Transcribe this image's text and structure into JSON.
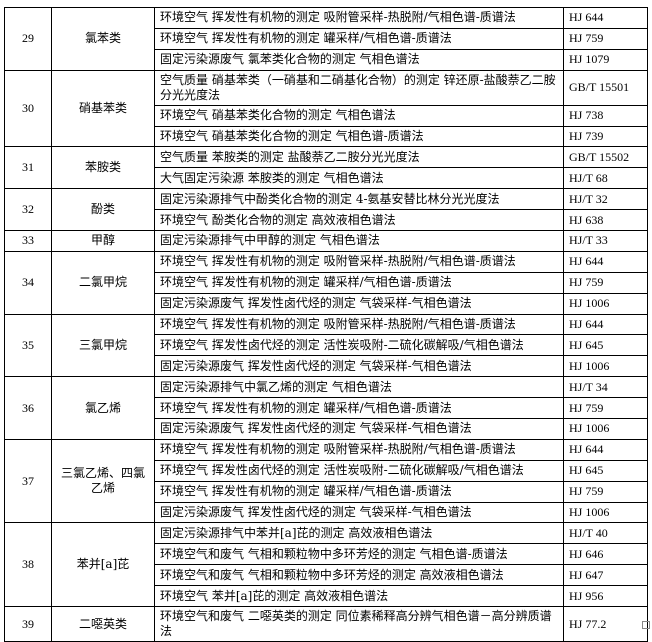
{
  "groups": [
    {
      "no": "29",
      "substance": "氯苯类",
      "methods": [
        {
          "name": "环境空气 挥发性有机物的测定  吸附管采样-热脱附/气相色谱-质谱法",
          "code": "HJ 644"
        },
        {
          "name": "环境空气 挥发性有机物的测定  罐采样/气相色谱-质谱法",
          "code": "HJ 759"
        },
        {
          "name": "固定污染源废气 氯苯类化合物的测定  气相色谱法",
          "code": "HJ 1079"
        }
      ]
    },
    {
      "no": "30",
      "substance": "硝基苯类",
      "methods": [
        {
          "name": "空气质量  硝基苯类（一硝基和二硝基化合物）的测定  锌还原-盐酸萘乙二胺分光光度法",
          "code": "GB/T 15501"
        },
        {
          "name": "环境空气 硝基苯类化合物的测定  气相色谱法",
          "code": "HJ 738"
        },
        {
          "name": "环境空气 硝基苯类化合物的测定  气相色谱-质谱法",
          "code": "HJ 739"
        }
      ]
    },
    {
      "no": "31",
      "substance": "苯胺类",
      "methods": [
        {
          "name": "空气质量 苯胺类的测定  盐酸萘乙二胺分光光度法",
          "code": "GB/T 15502"
        },
        {
          "name": "大气固定污染源  苯胺类的测定  气相色谱法",
          "code": "HJ/T 68"
        }
      ]
    },
    {
      "no": "32",
      "substance": "酚类",
      "methods": [
        {
          "name": "固定污染源排气中酚类化合物的测定   4-氨基安替比林分光光度法",
          "code": "HJ/T 32"
        },
        {
          "name": "环境空气 酚类化合物的测定  高效液相色谱法",
          "code": "HJ 638"
        }
      ]
    },
    {
      "no": "33",
      "substance": "甲醇",
      "methods": [
        {
          "name": "固定污染源排气中甲醇的测定  气相色谱法",
          "code": "HJ/T 33"
        }
      ]
    },
    {
      "no": "34",
      "substance": "二氯甲烷",
      "methods": [
        {
          "name": "环境空气 挥发性有机物的测定  吸附管采样-热脱附/气相色谱-质谱法",
          "code": "HJ 644"
        },
        {
          "name": "环境空气 挥发性有机物的测定  罐采样/气相色谱-质谱法",
          "code": "HJ 759"
        },
        {
          "name": "固定污染源废气 挥发性卤代烃的测定  气袋采样-气相色谱法",
          "code": "HJ 1006"
        }
      ]
    },
    {
      "no": "35",
      "substance": "三氯甲烷",
      "methods": [
        {
          "name": "环境空气 挥发性有机物的测定  吸附管采样-热脱附/气相色谱-质谱法",
          "code": "HJ 644"
        },
        {
          "name": "环境空气 挥发性卤代烃的测定  活性炭吸附-二硫化碳解吸/气相色谱法",
          "code": "HJ 645"
        },
        {
          "name": "固定污染源废气 挥发性卤代烃的测定  气袋采样-气相色谱法",
          "code": "HJ 1006"
        }
      ]
    },
    {
      "no": "36",
      "substance": "氯乙烯",
      "methods": [
        {
          "name": "固定污染源排气中氯乙烯的测定  气相色谱法",
          "code": "HJ/T 34"
        },
        {
          "name": "环境空气 挥发性有机物的测定 罐采样/气相色谱-质谱法",
          "code": "HJ 759"
        },
        {
          "name": "固定污染源废气 挥发性卤代烃的测定  气袋采样-气相色谱法",
          "code": "HJ 1006"
        }
      ]
    },
    {
      "no": "37",
      "substance": "三氯乙烯、四氯乙烯",
      "methods": [
        {
          "name": "环境空气 挥发性有机物的测定  吸附管采样-热脱附/气相色谱-质谱法",
          "code": "HJ 644"
        },
        {
          "name": "环境空气 挥发性卤代烃的测定  活性炭吸附-二硫化碳解吸/气相色谱法",
          "code": "HJ 645"
        },
        {
          "name": "环境空气 挥发性有机物的测定 罐采样/气相色谱-质谱法",
          "code": "HJ 759"
        },
        {
          "name": "固定污染源废气 挥发性卤代烃的测定  气袋采样-气相色谱法",
          "code": "HJ 1006"
        }
      ]
    },
    {
      "no": "38",
      "substance": "苯并[a]芘",
      "methods": [
        {
          "name": "固定污染源排气中苯并[a]芘的测定  高效液相色谱法",
          "code": "HJ/T 40"
        },
        {
          "name": "环境空气和废气  气相和颗粒物中多环芳烃的测定  气相色谱-质谱法",
          "code": "HJ 646"
        },
        {
          "name": "环境空气和废气  气相和颗粒物中多环芳烃的测定  高效液相色谱法",
          "code": "HJ 647"
        },
        {
          "name": "环境空气  苯并[a]芘的测定  高效液相色谱法",
          "code": "HJ 956"
        }
      ]
    },
    {
      "no": "39",
      "substance": "二噁英类",
      "methods": [
        {
          "name": "环境空气和废气  二噁英类的测定  同位素稀释高分辨气相色谱－高分辨质谱法",
          "code": "HJ 77.2"
        }
      ]
    }
  ]
}
